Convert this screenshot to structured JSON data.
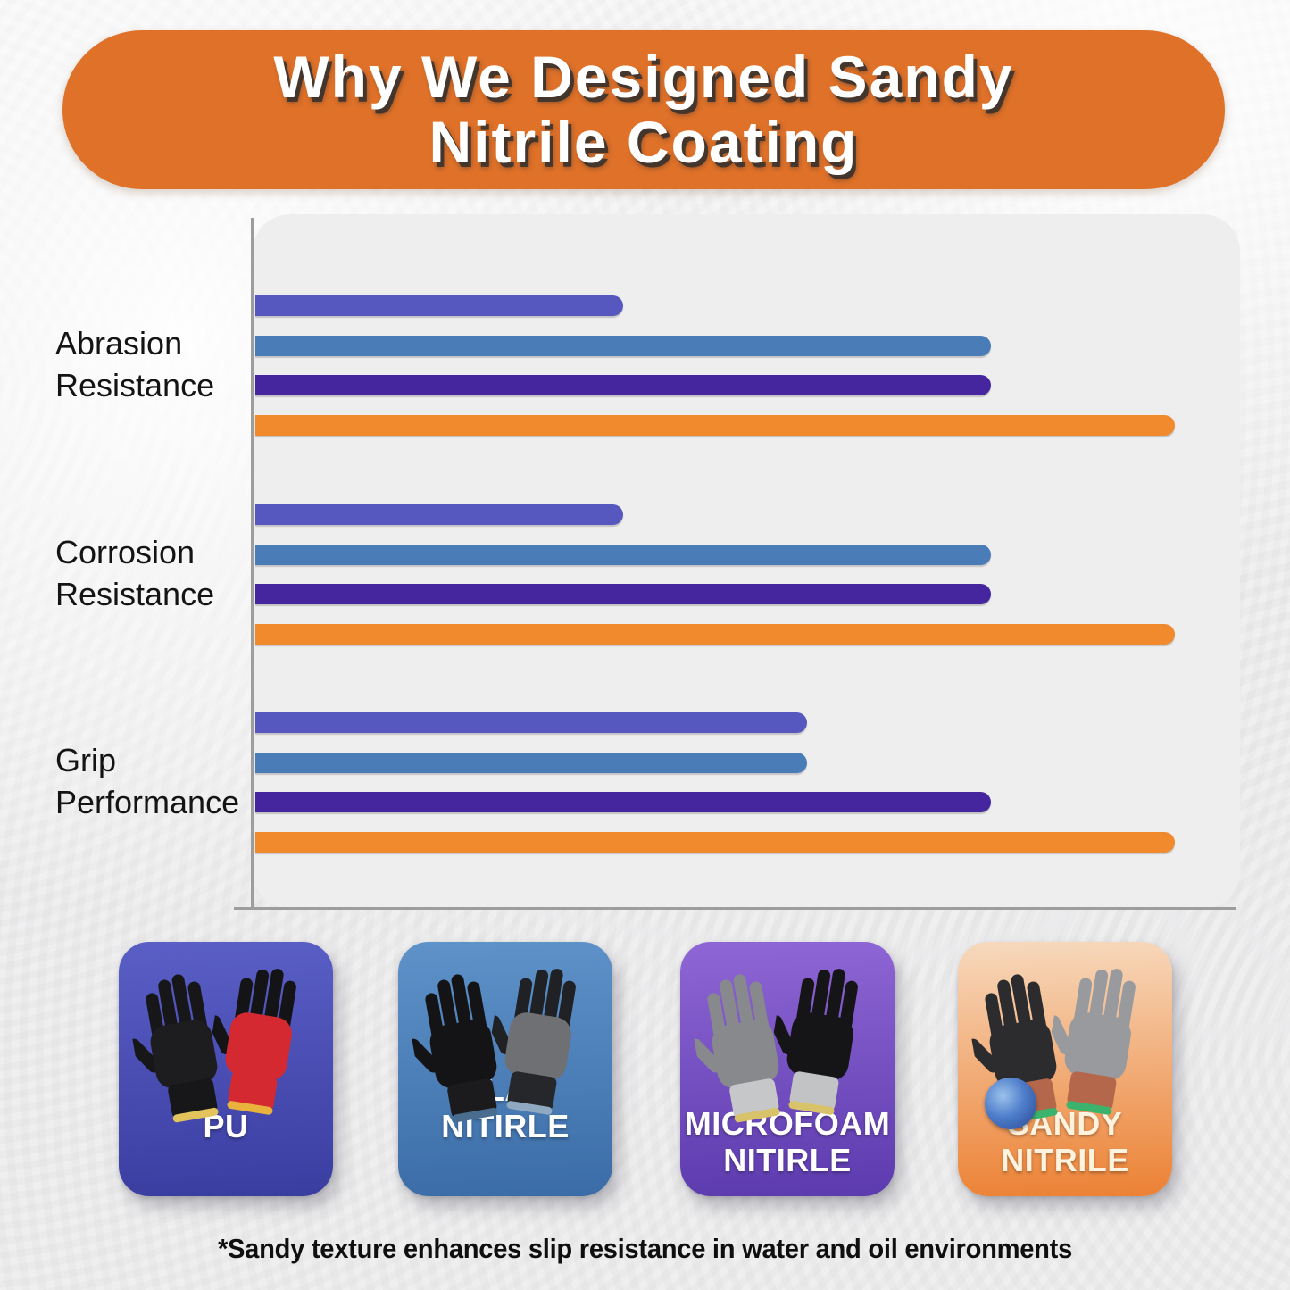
{
  "title": {
    "line1": "Why We Designed Sandy",
    "line2": "Nitrile Coating",
    "banner_color": "#df7129",
    "text_color": "#ffffff"
  },
  "chart_data": {
    "type": "bar",
    "orientation": "horizontal",
    "categories": [
      "Abrasion Resistance",
      "Corrosion Resistance",
      "Grip Performance"
    ],
    "category_label_lines": [
      [
        "Abrasion",
        "Resistance"
      ],
      [
        "Corrosion",
        "Resistance"
      ],
      [
        "Grip",
        "Performance"
      ]
    ],
    "series": [
      {
        "name": "PU",
        "color": "#5658c0",
        "values": [
          40,
          40,
          60
        ]
      },
      {
        "name": "Flat Nitrile",
        "color": "#4a7cb8",
        "values": [
          80,
          80,
          60
        ]
      },
      {
        "name": "Microfoam Nitrile",
        "color": "#46269e",
        "values": [
          80,
          80,
          80
        ]
      },
      {
        "name": "Sandy Nitrile",
        "color": "#f18a2d",
        "values": [
          100,
          100,
          100
        ]
      }
    ],
    "xlim": [
      0,
      107
    ],
    "grid": false,
    "axis_color": "#9d9d9d",
    "legend_position": "bottom-cards",
    "panel_color": "#eeeeef"
  },
  "cards": [
    {
      "label_lines": [
        "PU"
      ],
      "text_color": "#ffffff",
      "gradient": [
        "#5a5fc6",
        "#3a3da0"
      ],
      "icon": "gloves-pair-icon",
      "gloves": [
        {
          "fingers": "#17171a",
          "palm": "#1d1d20",
          "cuff": "#17171a",
          "trim": "#e3c35c"
        },
        {
          "fingers": "#141416",
          "palm": "#d42930",
          "cuff": "#d42930",
          "trim": "#e8b23c"
        }
      ]
    },
    {
      "label_lines": [
        "FLAT NITIRLE"
      ],
      "text_color": "#ffffff",
      "gradient": [
        "#5f92c9",
        "#3b6ca7"
      ],
      "icon": "gloves-pair-icon",
      "gloves": [
        {
          "fingers": "#141417",
          "palm": "#141417",
          "cuff": "#1b1b1e",
          "trim": "#4a6c8e"
        },
        {
          "fingers": "#202124",
          "palm": "#6e7073",
          "cuff": "#26272a",
          "trim": "#8fa9c0"
        }
      ]
    },
    {
      "label_lines": [
        "MICROFOAM",
        "NITIRLE"
      ],
      "text_color": "#ffffff",
      "gradient": [
        "#8f66d5",
        "#5c3bae"
      ],
      "icon": "gloves-pair-icon",
      "gloves": [
        {
          "fingers": "#87898c",
          "palm": "#87898c",
          "cuff": "#c6c7c9",
          "trim": "#d9c36a"
        },
        {
          "fingers": "#151517",
          "palm": "#151517",
          "cuff": "#c2c3c5",
          "trim": "#d9c36a"
        }
      ]
    },
    {
      "label_lines": [
        "SANDY",
        "NITRILE"
      ],
      "text_color": "#fdf3df",
      "gradient": [
        "#f7d9bd",
        "#ec8134"
      ],
      "icon": "gloves-pair-icon",
      "accessory": "grinder-disc",
      "gloves": [
        {
          "fingers": "#2c2c2e",
          "palm": "#2c2c2e",
          "cuff": "#b4674a",
          "trim": "#3bb36c"
        },
        {
          "fingers": "#989a9e",
          "palm": "#989a9e",
          "cuff": "#b4674a",
          "trim": "#3bb36c"
        }
      ]
    }
  ],
  "footnote": {
    "text": "*Sandy texture enhances slip resistance in water and oil environments",
    "color": "#0f0f0f"
  }
}
